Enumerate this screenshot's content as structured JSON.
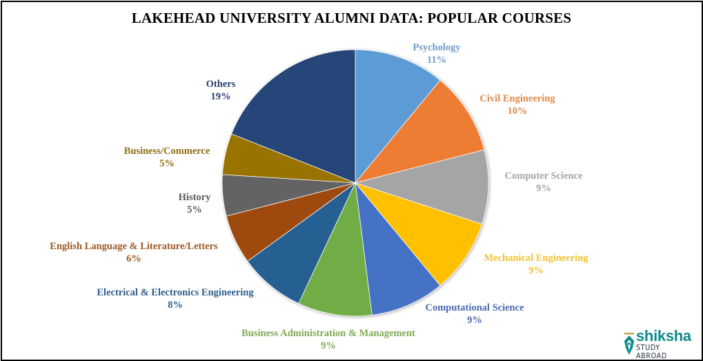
{
  "chart_data": {
    "type": "pie",
    "title": "LAKEHEAD UNIVERSITY ALUMNI DATA: POPULAR COURSES",
    "start_angle": "12 o'clock, clockwise",
    "categories": [
      "Psychology",
      "Civil Engineering",
      "Computer  Science",
      "Mechanical Engineering",
      "Computational  Science",
      "Business Administration  & Management",
      "Electrical  & Electronics Engineering",
      "English  Language & Literature/Letters",
      "History",
      "Business/Commerce",
      "Others"
    ],
    "values": [
      11,
      10,
      9,
      9,
      9,
      9,
      8,
      6,
      5,
      5,
      19
    ],
    "unit": "%",
    "colors": [
      "#5b9bd5",
      "#ed7d31",
      "#a5a5a5",
      "#ffc000",
      "#4472c4",
      "#70ad47",
      "#255e91",
      "#9e480e",
      "#636363",
      "#997300",
      "#264478"
    ],
    "label_colors": [
      "#6d9bc8",
      "#e08a4c",
      "#a5a5a5",
      "#f2c230",
      "#4a6ab0",
      "#7faa55",
      "#2f5e8c",
      "#9e5a26",
      "#5a5a5a",
      "#8f6d12",
      "#2a3f6a"
    ],
    "legend": "none (data labels outside slices)"
  },
  "labels": [
    {
      "name": "Psychology",
      "pct": "11%"
    },
    {
      "name": "Civil Engineering",
      "pct": "10%"
    },
    {
      "name": "Computer  Science",
      "pct": "9%"
    },
    {
      "name": "Mechanical Engineering",
      "pct": "9%"
    },
    {
      "name": "Computational  Science",
      "pct": "9%"
    },
    {
      "name": "Business Administration  & Management",
      "pct": "9%"
    },
    {
      "name": "Electrical  & Electronics Engineering",
      "pct": "8%"
    },
    {
      "name": "English  Language & Literature/Letters",
      "pct": "6%"
    },
    {
      "name": "History",
      "pct": "5%"
    },
    {
      "name": "Business/Commerce",
      "pct": "5%"
    },
    {
      "name": "Others",
      "pct": "19%"
    }
  ],
  "logo": {
    "brand": "shiksha",
    "tagline": "STUDY ABROAD"
  }
}
